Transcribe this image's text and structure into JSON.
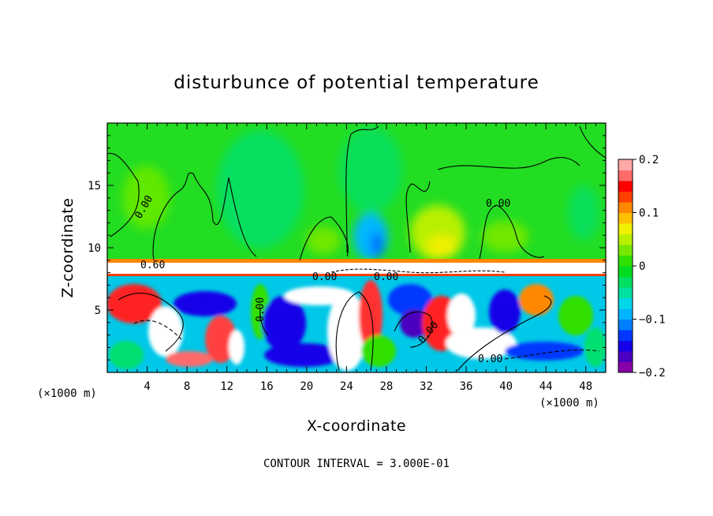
{
  "chart_data": {
    "type": "heatmap",
    "title": "disturbunce of potential temperature",
    "xlabel": "X-coordinate",
    "ylabel": "Z-coordinate",
    "x_unit_left": "(×1000 m)",
    "x_unit_right": "(×1000 m)",
    "xlim": [
      0,
      50
    ],
    "ylim": [
      0,
      20
    ],
    "x_ticks": [
      4,
      8,
      12,
      16,
      20,
      24,
      28,
      32,
      36,
      40,
      44,
      48
    ],
    "y_ticks": [
      5,
      10,
      15
    ],
    "colorbar": {
      "ticks": [
        "0.2",
        "0.1",
        "0",
        "−0.1",
        "−0.2"
      ],
      "tick_values": [
        0.2,
        0.1,
        0.0,
        -0.1,
        -0.2
      ],
      "range": [
        -0.2,
        0.2
      ],
      "colors": [
        "#8800a8",
        "#4b00c0",
        "#1400e8",
        "#0038ff",
        "#0080ff",
        "#00b4ff",
        "#00d8e8",
        "#00e0a0",
        "#00e060",
        "#00dc20",
        "#30e000",
        "#78e800",
        "#b8f000",
        "#f0f000",
        "#ffc000",
        "#ff8800",
        "#ff4000",
        "#ff0000",
        "#ff6a6a",
        "#ffa8a8"
      ]
    },
    "contour_labels": [
      "0.00",
      "0.60",
      "0.00",
      "0.00",
      "0.00",
      "0.00",
      "0.00",
      "0.00"
    ],
    "footer": "CONTOUR INTERVAL = 3.000E-01"
  }
}
